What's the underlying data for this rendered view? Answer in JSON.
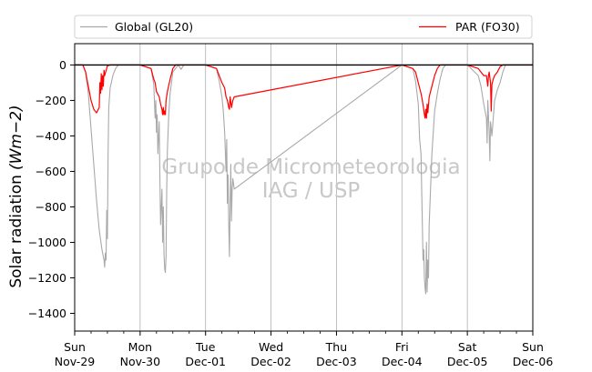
{
  "chart_data": {
    "type": "line",
    "ylabel": "Solar radiation",
    "ylabel_unit": "(Wm−2)",
    "ylim": [
      -1500,
      120
    ],
    "yticks": [
      0,
      -200,
      -400,
      -600,
      -800,
      -1000,
      -1200,
      -1400
    ],
    "xlim": [
      "2020-11-29",
      "2020-12-06"
    ],
    "xticks": [
      {
        "day": "Sun",
        "date": "Nov-29"
      },
      {
        "day": "Mon",
        "date": "Nov-30"
      },
      {
        "day": "Tue",
        "date": "Dec-01"
      },
      {
        "day": "Wed",
        "date": "Dec-02"
      },
      {
        "day": "Thu",
        "date": "Dec-03"
      },
      {
        "day": "Fri",
        "date": "Dec-04"
      },
      {
        "day": "Sat",
        "date": "Dec-05"
      },
      {
        "day": "Sun",
        "date": "Dec-06"
      }
    ],
    "grid": "vertical",
    "legend": {
      "placement": "top",
      "columns": 2
    },
    "series": [
      {
        "name": "Global (GL20)",
        "color": "#a9a9a9",
        "points": [
          [
            "2020-11-29 00:00",
            0
          ],
          [
            "2020-11-29 03:00",
            0
          ],
          [
            "2020-11-29 04:00",
            -40
          ],
          [
            "2020-11-29 05:00",
            -160
          ],
          [
            "2020-11-29 06:00",
            -360
          ],
          [
            "2020-11-29 07:00",
            -560
          ],
          [
            "2020-11-29 08:00",
            -760
          ],
          [
            "2020-11-29 09:00",
            -930
          ],
          [
            "2020-11-29 10:00",
            -1040
          ],
          [
            "2020-11-29 10:45",
            -1100
          ],
          [
            "2020-11-29 11:00",
            -1140
          ],
          [
            "2020-11-29 11:15",
            -1060
          ],
          [
            "2020-11-29 11:30",
            -1100
          ],
          [
            "2020-11-29 11:45",
            -820
          ],
          [
            "2020-11-29 12:00",
            -980
          ],
          [
            "2020-11-29 12:15",
            -500
          ],
          [
            "2020-11-29 12:30",
            -240
          ],
          [
            "2020-11-29 13:00",
            -130
          ],
          [
            "2020-11-29 14:00",
            -60
          ],
          [
            "2020-11-29 15:00",
            -20
          ],
          [
            "2020-11-29 16:00",
            0
          ],
          [
            "2020-11-30 00:00",
            0
          ],
          [
            "2020-11-30 04:00",
            -20
          ],
          [
            "2020-11-30 05:00",
            -110
          ],
          [
            "2020-11-30 05:30",
            -300
          ],
          [
            "2020-11-30 05:45",
            -200
          ],
          [
            "2020-11-30 06:00",
            -380
          ],
          [
            "2020-11-30 06:15",
            -280
          ],
          [
            "2020-11-30 06:30",
            -500
          ],
          [
            "2020-11-30 07:00",
            -320
          ],
          [
            "2020-11-30 07:15",
            -640
          ],
          [
            "2020-11-30 07:30",
            -900
          ],
          [
            "2020-11-30 08:00",
            -700
          ],
          [
            "2020-11-30 08:15",
            -1000
          ],
          [
            "2020-11-30 08:30",
            -800
          ],
          [
            "2020-11-30 08:45",
            -1060
          ],
          [
            "2020-11-30 09:00",
            -1150
          ],
          [
            "2020-11-30 09:15",
            -1170
          ],
          [
            "2020-11-30 09:30",
            -1080
          ],
          [
            "2020-11-30 09:45",
            -700
          ],
          [
            "2020-11-30 10:00",
            -480
          ],
          [
            "2020-11-30 10:30",
            -280
          ],
          [
            "2020-11-30 11:00",
            -160
          ],
          [
            "2020-11-30 12:00",
            -40
          ],
          [
            "2020-11-30 13:00",
            -20
          ],
          [
            "2020-11-30 14:00",
            0
          ],
          [
            "2020-11-30 15:00",
            -25
          ],
          [
            "2020-11-30 16:00",
            0
          ],
          [
            "2020-12-01 00:00",
            0
          ],
          [
            "2020-12-01 04:00",
            -20
          ],
          [
            "2020-12-01 05:00",
            -90
          ],
          [
            "2020-12-01 06:00",
            -180
          ],
          [
            "2020-12-01 06:30",
            -260
          ],
          [
            "2020-12-01 07:00",
            -380
          ],
          [
            "2020-12-01 07:30",
            -600
          ],
          [
            "2020-12-01 07:45",
            -420
          ],
          [
            "2020-12-01 08:00",
            -780
          ],
          [
            "2020-12-01 08:15",
            -620
          ],
          [
            "2020-12-01 08:30",
            -900
          ],
          [
            "2020-12-01 08:45",
            -1080
          ],
          [
            "2020-12-01 09:00",
            -780
          ],
          [
            "2020-12-01 09:15",
            -560
          ],
          [
            "2020-12-01 09:30",
            -880
          ],
          [
            "2020-12-01 09:45",
            -700
          ],
          [
            "2020-12-01 10:00",
            -640
          ],
          [
            "2020-12-01 10:30",
            -700
          ],
          [
            "2020-12-04 00:00",
            0
          ],
          [
            "2020-12-04 04:00",
            -20
          ],
          [
            "2020-12-04 05:00",
            -90
          ],
          [
            "2020-12-04 06:00",
            -220
          ],
          [
            "2020-12-04 06:30",
            -420
          ],
          [
            "2020-12-04 07:00",
            -500
          ],
          [
            "2020-12-04 07:15",
            -700
          ],
          [
            "2020-12-04 07:30",
            -900
          ],
          [
            "2020-12-04 07:45",
            -1100
          ],
          [
            "2020-12-04 08:00",
            -1040
          ],
          [
            "2020-12-04 08:15",
            -1200
          ],
          [
            "2020-12-04 08:30",
            -1260
          ],
          [
            "2020-12-04 08:45",
            -1290
          ],
          [
            "2020-12-04 09:00",
            -1000
          ],
          [
            "2020-12-04 09:15",
            -1280
          ],
          [
            "2020-12-04 09:30",
            -1100
          ],
          [
            "2020-12-04 09:45",
            -1200
          ],
          [
            "2020-12-04 10:00",
            -900
          ],
          [
            "2020-12-04 10:30",
            -700
          ],
          [
            "2020-12-04 11:00",
            -500
          ],
          [
            "2020-12-04 12:00",
            -260
          ],
          [
            "2020-12-04 13:00",
            -160
          ],
          [
            "2020-12-04 14:00",
            -80
          ],
          [
            "2020-12-04 15:00",
            -20
          ],
          [
            "2020-12-04 16:00",
            0
          ],
          [
            "2020-12-05 00:00",
            0
          ],
          [
            "2020-12-05 04:00",
            -60
          ],
          [
            "2020-12-05 05:00",
            -120
          ],
          [
            "2020-12-05 06:00",
            -220
          ],
          [
            "2020-12-05 07:00",
            -300
          ],
          [
            "2020-12-05 07:15",
            -440
          ],
          [
            "2020-12-05 07:30",
            -200
          ],
          [
            "2020-12-05 08:00",
            -380
          ],
          [
            "2020-12-05 08:15",
            -540
          ],
          [
            "2020-12-05 08:30",
            -320
          ],
          [
            "2020-12-05 09:00",
            -400
          ],
          [
            "2020-12-05 09:30",
            -300
          ],
          [
            "2020-12-05 10:00",
            -200
          ],
          [
            "2020-12-05 11:00",
            -140
          ],
          [
            "2020-12-05 12:00",
            -100
          ],
          [
            "2020-12-05 13:00",
            -40
          ],
          [
            "2020-12-05 14:00",
            0
          ],
          [
            "2020-12-06 00:00",
            0
          ]
        ]
      },
      {
        "name": "PAR (FO30)",
        "color": "#ff0000",
        "points": [
          [
            "2020-11-29 00:00",
            0
          ],
          [
            "2020-11-29 03:00",
            0
          ],
          [
            "2020-11-29 04:00",
            -40
          ],
          [
            "2020-11-29 05:00",
            -120
          ],
          [
            "2020-11-29 06:00",
            -200
          ],
          [
            "2020-11-29 07:00",
            -250
          ],
          [
            "2020-11-29 08:00",
            -270
          ],
          [
            "2020-11-29 09:00",
            -240
          ],
          [
            "2020-11-29 09:15",
            -100
          ],
          [
            "2020-11-29 09:30",
            -160
          ],
          [
            "2020-11-29 09:45",
            -50
          ],
          [
            "2020-11-29 10:00",
            -140
          ],
          [
            "2020-11-29 10:15",
            -60
          ],
          [
            "2020-11-29 10:30",
            -120
          ],
          [
            "2020-11-29 10:45",
            -30
          ],
          [
            "2020-11-29 11:00",
            -60
          ],
          [
            "2020-11-29 12:00",
            -5
          ],
          [
            "2020-11-29 13:00",
            0
          ],
          [
            "2020-11-30 00:00",
            0
          ],
          [
            "2020-11-30 04:00",
            -20
          ],
          [
            "2020-11-30 05:00",
            -80
          ],
          [
            "2020-11-30 05:30",
            -100
          ],
          [
            "2020-11-30 06:00",
            -150
          ],
          [
            "2020-11-30 07:00",
            -180
          ],
          [
            "2020-11-30 07:30",
            -220
          ],
          [
            "2020-11-30 08:00",
            -250
          ],
          [
            "2020-11-30 08:15",
            -280
          ],
          [
            "2020-11-30 08:30",
            -240
          ],
          [
            "2020-11-30 08:45",
            -280
          ],
          [
            "2020-11-30 09:00",
            -260
          ],
          [
            "2020-11-30 09:15",
            -280
          ],
          [
            "2020-11-30 09:30",
            -200
          ],
          [
            "2020-11-30 10:00",
            -150
          ],
          [
            "2020-11-30 11:00",
            -80
          ],
          [
            "2020-11-30 12:00",
            -20
          ],
          [
            "2020-11-30 13:00",
            0
          ],
          [
            "2020-12-01 00:00",
            0
          ],
          [
            "2020-12-01 04:00",
            -20
          ],
          [
            "2020-12-01 05:00",
            -60
          ],
          [
            "2020-12-01 06:00",
            -100
          ],
          [
            "2020-12-01 07:00",
            -130
          ],
          [
            "2020-12-01 07:30",
            -180
          ],
          [
            "2020-12-01 08:00",
            -200
          ],
          [
            "2020-12-01 08:30",
            -240
          ],
          [
            "2020-12-01 08:45",
            -250
          ],
          [
            "2020-12-01 09:00",
            -180
          ],
          [
            "2020-12-01 09:30",
            -240
          ],
          [
            "2020-12-01 10:00",
            -200
          ],
          [
            "2020-12-01 10:30",
            -180
          ],
          [
            "2020-12-04 00:00",
            0
          ],
          [
            "2020-12-04 04:00",
            -20
          ],
          [
            "2020-12-04 05:00",
            -40
          ],
          [
            "2020-12-04 06:00",
            -100
          ],
          [
            "2020-12-04 07:00",
            -160
          ],
          [
            "2020-12-04 07:30",
            -200
          ],
          [
            "2020-12-04 08:00",
            -250
          ],
          [
            "2020-12-04 08:15",
            -280
          ],
          [
            "2020-12-04 08:30",
            -300
          ],
          [
            "2020-12-04 08:45",
            -250
          ],
          [
            "2020-12-04 09:00",
            -300
          ],
          [
            "2020-12-04 09:15",
            -220
          ],
          [
            "2020-12-04 09:30",
            -270
          ],
          [
            "2020-12-04 10:00",
            -180
          ],
          [
            "2020-12-04 11:00",
            -120
          ],
          [
            "2020-12-04 12:00",
            -60
          ],
          [
            "2020-12-04 13:00",
            -20
          ],
          [
            "2020-12-04 14:00",
            0
          ],
          [
            "2020-12-05 00:00",
            0
          ],
          [
            "2020-12-05 04:00",
            -20
          ],
          [
            "2020-12-05 05:00",
            -40
          ],
          [
            "2020-12-05 06:00",
            -60
          ],
          [
            "2020-12-05 07:00",
            -60
          ],
          [
            "2020-12-05 07:30",
            -120
          ],
          [
            "2020-12-05 07:45",
            -60
          ],
          [
            "2020-12-05 08:00",
            -40
          ],
          [
            "2020-12-05 08:30",
            -100
          ],
          [
            "2020-12-05 08:45",
            -260
          ],
          [
            "2020-12-05 09:00",
            -110
          ],
          [
            "2020-12-05 09:30",
            -80
          ],
          [
            "2020-12-05 10:00",
            -60
          ],
          [
            "2020-12-05 11:00",
            -40
          ],
          [
            "2020-12-05 12:00",
            -10
          ],
          [
            "2020-12-05 13:00",
            0
          ],
          [
            "2020-12-06 00:00",
            0
          ]
        ]
      }
    ],
    "zero_line": {
      "value": 0,
      "color": "#000000"
    },
    "watermark": [
      "Grupo de Micrometeorologia",
      "IAG / USP"
    ]
  }
}
